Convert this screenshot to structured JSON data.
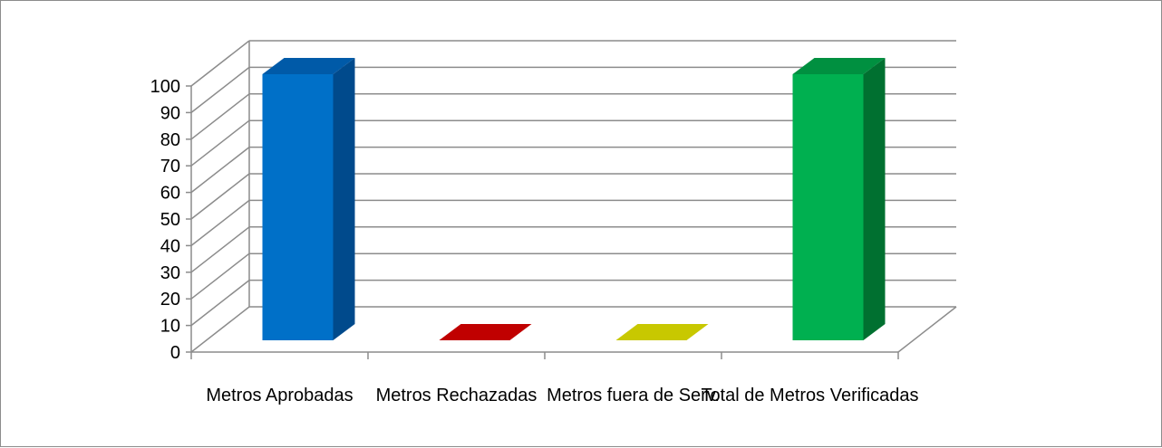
{
  "chart_data": {
    "type": "bar",
    "title": "",
    "xlabel": "",
    "ylabel": "",
    "ylim": [
      0,
      100
    ],
    "yticks": [
      0,
      10,
      20,
      30,
      40,
      50,
      60,
      70,
      80,
      90,
      100
    ],
    "categories": [
      "Metros  Aprobadas",
      "Metros Rechazadas",
      "Metros fuera de Serv.",
      "Total de Metros Verificadas"
    ],
    "values": [
      100,
      0,
      0,
      100
    ],
    "grid": true,
    "legend": "none",
    "three_d": true,
    "colors": [
      {
        "front": "#0070C8",
        "side": "#004A8C",
        "top": "#005AA8"
      },
      {
        "front": "#C00000",
        "side": "#8A0000",
        "top": "#C00000"
      },
      {
        "front": "#C8C800",
        "side": "#A0A000",
        "top": "#C8C800"
      },
      {
        "front": "#00B050",
        "side": "#007030",
        "top": "#009040"
      }
    ],
    "grid_color": "#8C8C8C"
  }
}
